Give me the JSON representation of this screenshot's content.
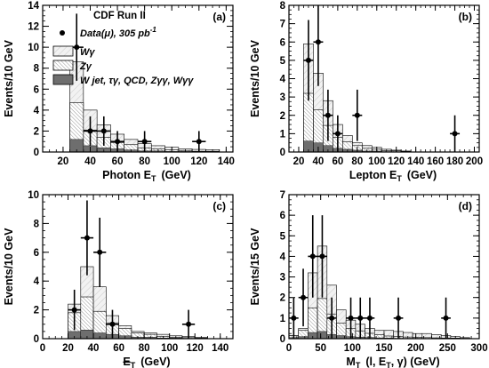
{
  "figure": {
    "experiment_label": "CDF Run II",
    "legend": [
      {
        "key": "data",
        "label": "Data(μ), 305 pb",
        "superscript": "-1",
        "marker": "dot"
      },
      {
        "key": "wg",
        "label": "Wγ",
        "fill": "#f0f0f0",
        "hatch": "light"
      },
      {
        "key": "zg",
        "label": "Zγ",
        "fill": "#ffffff",
        "hatch": "dense"
      },
      {
        "key": "bkg",
        "label": "W jet, τγ, QCD, Zγγ, Wγγ",
        "fill": "#6e6e6e",
        "hatch": "none"
      }
    ],
    "colors": {
      "wg_fill": "#f2f2f2",
      "zg_fill": "#ffffff",
      "bkg_fill": "#6e6e6e",
      "ink": "#000000"
    }
  },
  "chart_data": [
    {
      "panel": "(a)",
      "type": "bar",
      "stacked_histogram": true,
      "title": "",
      "xlabel": "Photon E",
      "xlabel_sub": "T",
      "xlabel_unit": "(GeV)",
      "ylabel": "Events/10 GeV",
      "xlim": [
        5,
        145
      ],
      "ylim": [
        0,
        14
      ],
      "xticks": [
        "20",
        "40",
        "60",
        "80",
        "100",
        "120",
        "140"
      ],
      "yticks": [
        "0",
        "2",
        "4",
        "6",
        "8",
        "10",
        "12",
        "14"
      ],
      "bin_edges": [
        25,
        35,
        45,
        55,
        65,
        75,
        85,
        95,
        105,
        115,
        125,
        135
      ],
      "stacks": {
        "bkg": [
          1.2,
          0.6,
          0.4,
          0.3,
          0.2,
          0.1,
          0.1,
          0.05,
          0.05,
          0.02,
          0.02
        ],
        "zg": [
          3.5,
          1.5,
          1.0,
          0.6,
          0.5,
          0.3,
          0.2,
          0.15,
          0.1,
          0.05,
          0.05
        ],
        "total": [
          8.6,
          4.0,
          2.6,
          1.7,
          1.2,
          0.8,
          0.6,
          0.45,
          0.3,
          0.25,
          0.2
        ]
      },
      "data_points": [
        {
          "x": 30,
          "y": 10,
          "err": 3.2,
          "xerr": 5
        },
        {
          "x": 40,
          "y": 2,
          "err": 1.4,
          "xerr": 5
        },
        {
          "x": 50,
          "y": 2,
          "err": 1.4,
          "xerr": 5
        },
        {
          "x": 60,
          "y": 1,
          "err": 1.0,
          "xerr": 5
        },
        {
          "x": 80,
          "y": 1,
          "err": 1.0,
          "xerr": 5
        },
        {
          "x": 120,
          "y": 1,
          "err": 1.0,
          "xerr": 5
        }
      ]
    },
    {
      "panel": "(b)",
      "type": "bar",
      "stacked_histogram": true,
      "title": "",
      "xlabel": "Lepton E",
      "xlabel_sub": "T",
      "xlabel_unit": "(GeV)",
      "ylabel": "Events/10 GeV",
      "xlim": [
        10,
        205
      ],
      "ylim": [
        0,
        8
      ],
      "xticks": [
        "20",
        "40",
        "60",
        "80",
        "100",
        "120",
        "140",
        "160",
        "180",
        "200"
      ],
      "yticks": [
        "0",
        "1",
        "2",
        "3",
        "4",
        "5",
        "6",
        "7",
        "8"
      ],
      "bin_edges": [
        25,
        35,
        45,
        55,
        65,
        75,
        85,
        95,
        105,
        115,
        125,
        135
      ],
      "stacks": {
        "bkg": [
          0.6,
          0.5,
          0.35,
          0.2,
          0.15,
          0.1,
          0.05,
          0.05,
          0.02,
          0.02,
          0.02
        ],
        "zg": [
          2.6,
          1.8,
          1.1,
          0.6,
          0.4,
          0.25,
          0.15,
          0.1,
          0.05,
          0.05,
          0.02
        ],
        "total": [
          5.9,
          4.3,
          2.8,
          1.5,
          0.9,
          0.5,
          0.35,
          0.25,
          0.15,
          0.1,
          0.05
        ]
      },
      "data_points": [
        {
          "x": 30,
          "y": 5,
          "err": 2.2,
          "xerr": 5
        },
        {
          "x": 40,
          "y": 6,
          "err": 2.4,
          "xerr": 5
        },
        {
          "x": 50,
          "y": 2,
          "err": 1.4,
          "xerr": 5
        },
        {
          "x": 60,
          "y": 1,
          "err": 1.0,
          "xerr": 5
        },
        {
          "x": 80,
          "y": 2,
          "err": 1.4,
          "xerr": 5
        },
        {
          "x": 180,
          "y": 1,
          "err": 1.0,
          "xerr": 5
        }
      ]
    },
    {
      "panel": "(c)",
      "type": "bar",
      "stacked_histogram": true,
      "title": "",
      "xlabel": "E",
      "xlabel_sub": "T",
      "xlabel_unit": "(GeV)",
      "xlabel_slashed": true,
      "ylabel": "Events/10 GeV",
      "xlim": [
        0,
        150
      ],
      "ylim": [
        0,
        10
      ],
      "xticks": [
        "0",
        "20",
        "40",
        "60",
        "80",
        "100",
        "120",
        "140"
      ],
      "yticks": [
        "0",
        "2",
        "4",
        "6",
        "8",
        "10"
      ],
      "bin_edges": [
        20,
        30,
        40,
        50,
        60,
        70,
        80,
        90,
        100,
        110,
        120,
        130
      ],
      "stacks": {
        "bkg": [
          0.5,
          0.6,
          0.4,
          0.3,
          0.2,
          0.1,
          0.1,
          0.05,
          0.05,
          0.02,
          0.02
        ],
        "zg": [
          1.3,
          2.3,
          1.5,
          0.8,
          0.5,
          0.3,
          0.2,
          0.1,
          0.05,
          0.05,
          0.02
        ],
        "total": [
          2.4,
          5.0,
          3.6,
          1.6,
          0.9,
          0.5,
          0.4,
          0.3,
          0.2,
          0.15,
          0.1
        ]
      },
      "data_points": [
        {
          "x": 25,
          "y": 2,
          "err": 1.4,
          "xerr": 5
        },
        {
          "x": 35,
          "y": 7,
          "err": 2.6,
          "xerr": 5
        },
        {
          "x": 45,
          "y": 6,
          "err": 2.4,
          "xerr": 5
        },
        {
          "x": 55,
          "y": 1,
          "err": 1.0,
          "xerr": 5
        },
        {
          "x": 115,
          "y": 1,
          "err": 1.0,
          "xerr": 5
        }
      ]
    },
    {
      "panel": "(d)",
      "type": "bar",
      "stacked_histogram": true,
      "title": "",
      "xlabel": "M",
      "xlabel_sub": "T",
      "xlabel_unit": "(l, E",
      "xlabel_unit_sub": "T",
      "xlabel_unit_tail": ", γ)  (GeV)",
      "xlabel_unit_slashed": true,
      "ylabel": "Events/15 GeV",
      "xlim": [
        0,
        300
      ],
      "ylim": [
        0,
        7
      ],
      "xticks": [
        "0",
        "50",
        "100",
        "150",
        "200",
        "250",
        "300"
      ],
      "yticks": [
        "0",
        "1",
        "2",
        "3",
        "4",
        "5",
        "6",
        "7"
      ],
      "bin_edges": [
        0,
        15,
        30,
        45,
        60,
        75,
        90,
        105,
        120,
        135,
        150,
        165,
        180,
        195,
        210,
        225,
        240,
        255,
        270,
        285
      ],
      "stacks": {
        "bkg": [
          0.05,
          0.1,
          0.3,
          0.35,
          0.2,
          0.15,
          0.1,
          0.08,
          0.06,
          0.04,
          0.03,
          0.02,
          0.02,
          0.02,
          0.01,
          0.01,
          0.01,
          0.01,
          0.01
        ],
        "zg": [
          0.1,
          0.3,
          1.2,
          1.6,
          1.0,
          0.6,
          0.4,
          0.3,
          0.2,
          0.15,
          0.1,
          0.08,
          0.06,
          0.05,
          0.04,
          0.03,
          0.02,
          0.02,
          0.01
        ],
        "total": [
          0.15,
          0.5,
          3.2,
          4.5,
          2.6,
          1.4,
          0.9,
          0.7,
          0.5,
          0.4,
          0.4,
          0.35,
          0.3,
          0.25,
          0.25,
          0.2,
          0.15,
          0.1,
          0.05
        ]
      },
      "data_points": [
        {
          "x": 7.5,
          "y": 1,
          "err": 1.0,
          "xerr": 7.5
        },
        {
          "x": 22.5,
          "y": 2,
          "err": 1.4,
          "xerr": 7.5
        },
        {
          "x": 37.5,
          "y": 4,
          "err": 2.0,
          "xerr": 7.5
        },
        {
          "x": 52.5,
          "y": 4,
          "err": 2.0,
          "xerr": 7.5
        },
        {
          "x": 67.5,
          "y": 1,
          "err": 1.0,
          "xerr": 7.5
        },
        {
          "x": 97.5,
          "y": 1,
          "err": 1.0,
          "xerr": 7.5
        },
        {
          "x": 112.5,
          "y": 1,
          "err": 1.0,
          "xerr": 7.5
        },
        {
          "x": 127.5,
          "y": 1,
          "err": 1.0,
          "xerr": 7.5
        },
        {
          "x": 172.5,
          "y": 1,
          "err": 1.0,
          "xerr": 7.5
        },
        {
          "x": 247.5,
          "y": 1,
          "err": 1.0,
          "xerr": 7.5
        }
      ]
    }
  ]
}
